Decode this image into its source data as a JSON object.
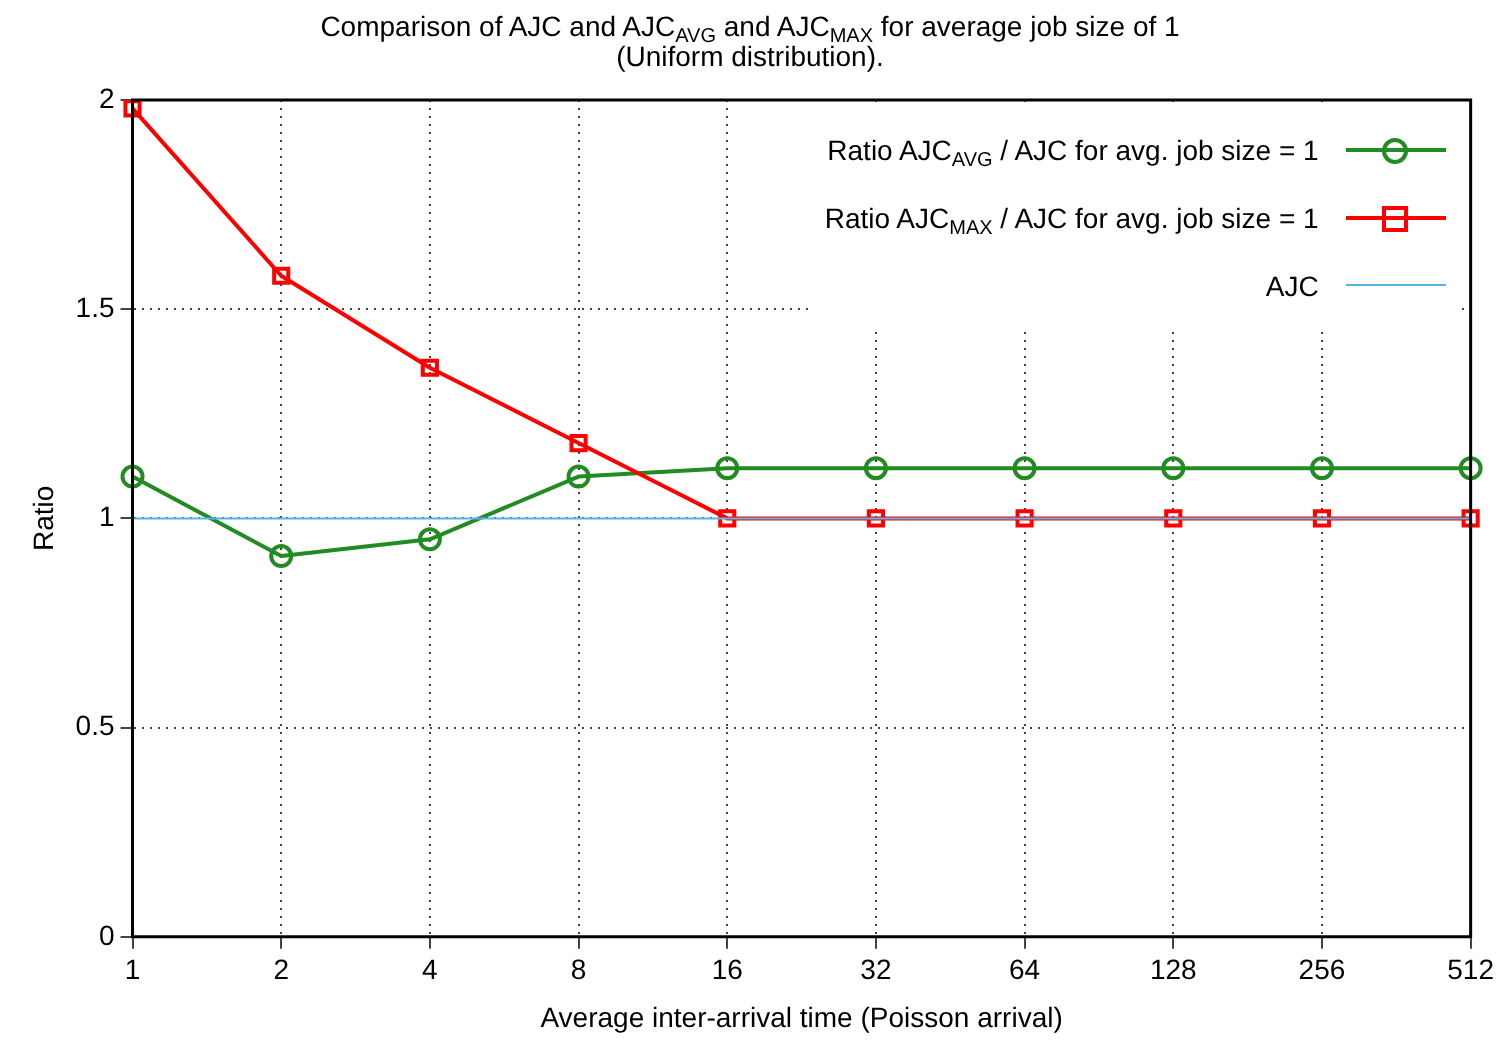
{
  "chart_data": {
    "type": "line",
    "title": "Comparison of AJC and AJC$_{AVG}$ and AJC$_{MAX}$ for average job size of 1",
    "subtitle": "(Uniform distribution).",
    "xlabel": "Average inter-arrival time (Poisson arrival)",
    "ylabel": "Ratio",
    "categories": [
      "1",
      "2",
      "4",
      "8",
      "16",
      "32",
      "64",
      "128",
      "256",
      "512"
    ],
    "series": [
      {
        "name": "Ratio AJC$_{AVG}$ / AJC for avg. job size = 1",
        "color": "#228b22",
        "marker": "circle",
        "values": [
          1.1,
          0.91,
          0.95,
          1.1,
          1.12,
          1.12,
          1.12,
          1.12,
          1.12,
          1.12
        ]
      },
      {
        "name": "Ratio AJC$_{MAX}$ / AJC for avg. job size = 1",
        "color": "#ff0000",
        "marker": "square",
        "values": [
          1.98,
          1.58,
          1.36,
          1.18,
          1,
          1,
          1,
          1,
          1,
          1
        ]
      },
      {
        "name": "AJC",
        "color": "#56b4e9",
        "marker": "none",
        "values": [
          1,
          1,
          1,
          1,
          1,
          1,
          1,
          1,
          1,
          1
        ]
      }
    ],
    "ylim": [
      0,
      2
    ],
    "yticks": [
      0,
      0.5,
      1,
      1.5,
      2
    ],
    "grid": true,
    "legend": "top right",
    "line_style": "solid"
  }
}
